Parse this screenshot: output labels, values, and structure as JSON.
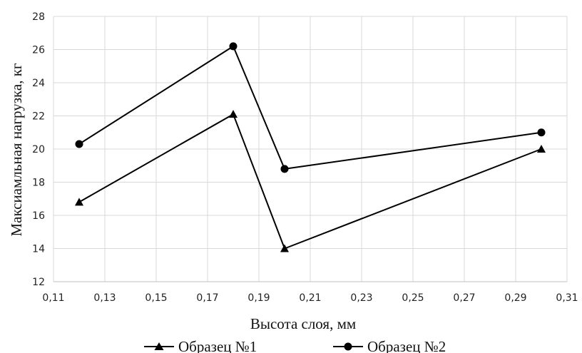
{
  "chart_data": {
    "type": "line",
    "xlabel": "Высота слоя, мм",
    "ylabel": "Максиамльная нагрузка, кг",
    "xlim": [
      0.11,
      0.31
    ],
    "ylim": [
      12,
      28
    ],
    "x_ticks": [
      "0,11",
      "0,13",
      "0,15",
      "0,17",
      "0,19",
      "0,21",
      "0,23",
      "0,25",
      "0,27",
      "0,29",
      "0,31"
    ],
    "y_ticks": [
      "12",
      "14",
      "16",
      "18",
      "20",
      "22",
      "24",
      "26",
      "28"
    ],
    "grid": true,
    "legend_position": "bottom",
    "colors": {
      "line": "#000000",
      "grid": "#d9d9d9",
      "axis": "#bfbfbf"
    },
    "series": [
      {
        "name": "Образец №1",
        "marker": "triangle",
        "x": [
          0.12,
          0.18,
          0.2,
          0.3
        ],
        "values": [
          16.8,
          22.1,
          14.0,
          20.0
        ]
      },
      {
        "name": "Образец №2",
        "marker": "circle",
        "x": [
          0.12,
          0.18,
          0.2,
          0.3
        ],
        "values": [
          20.3,
          26.2,
          18.8,
          21.0
        ]
      }
    ]
  }
}
